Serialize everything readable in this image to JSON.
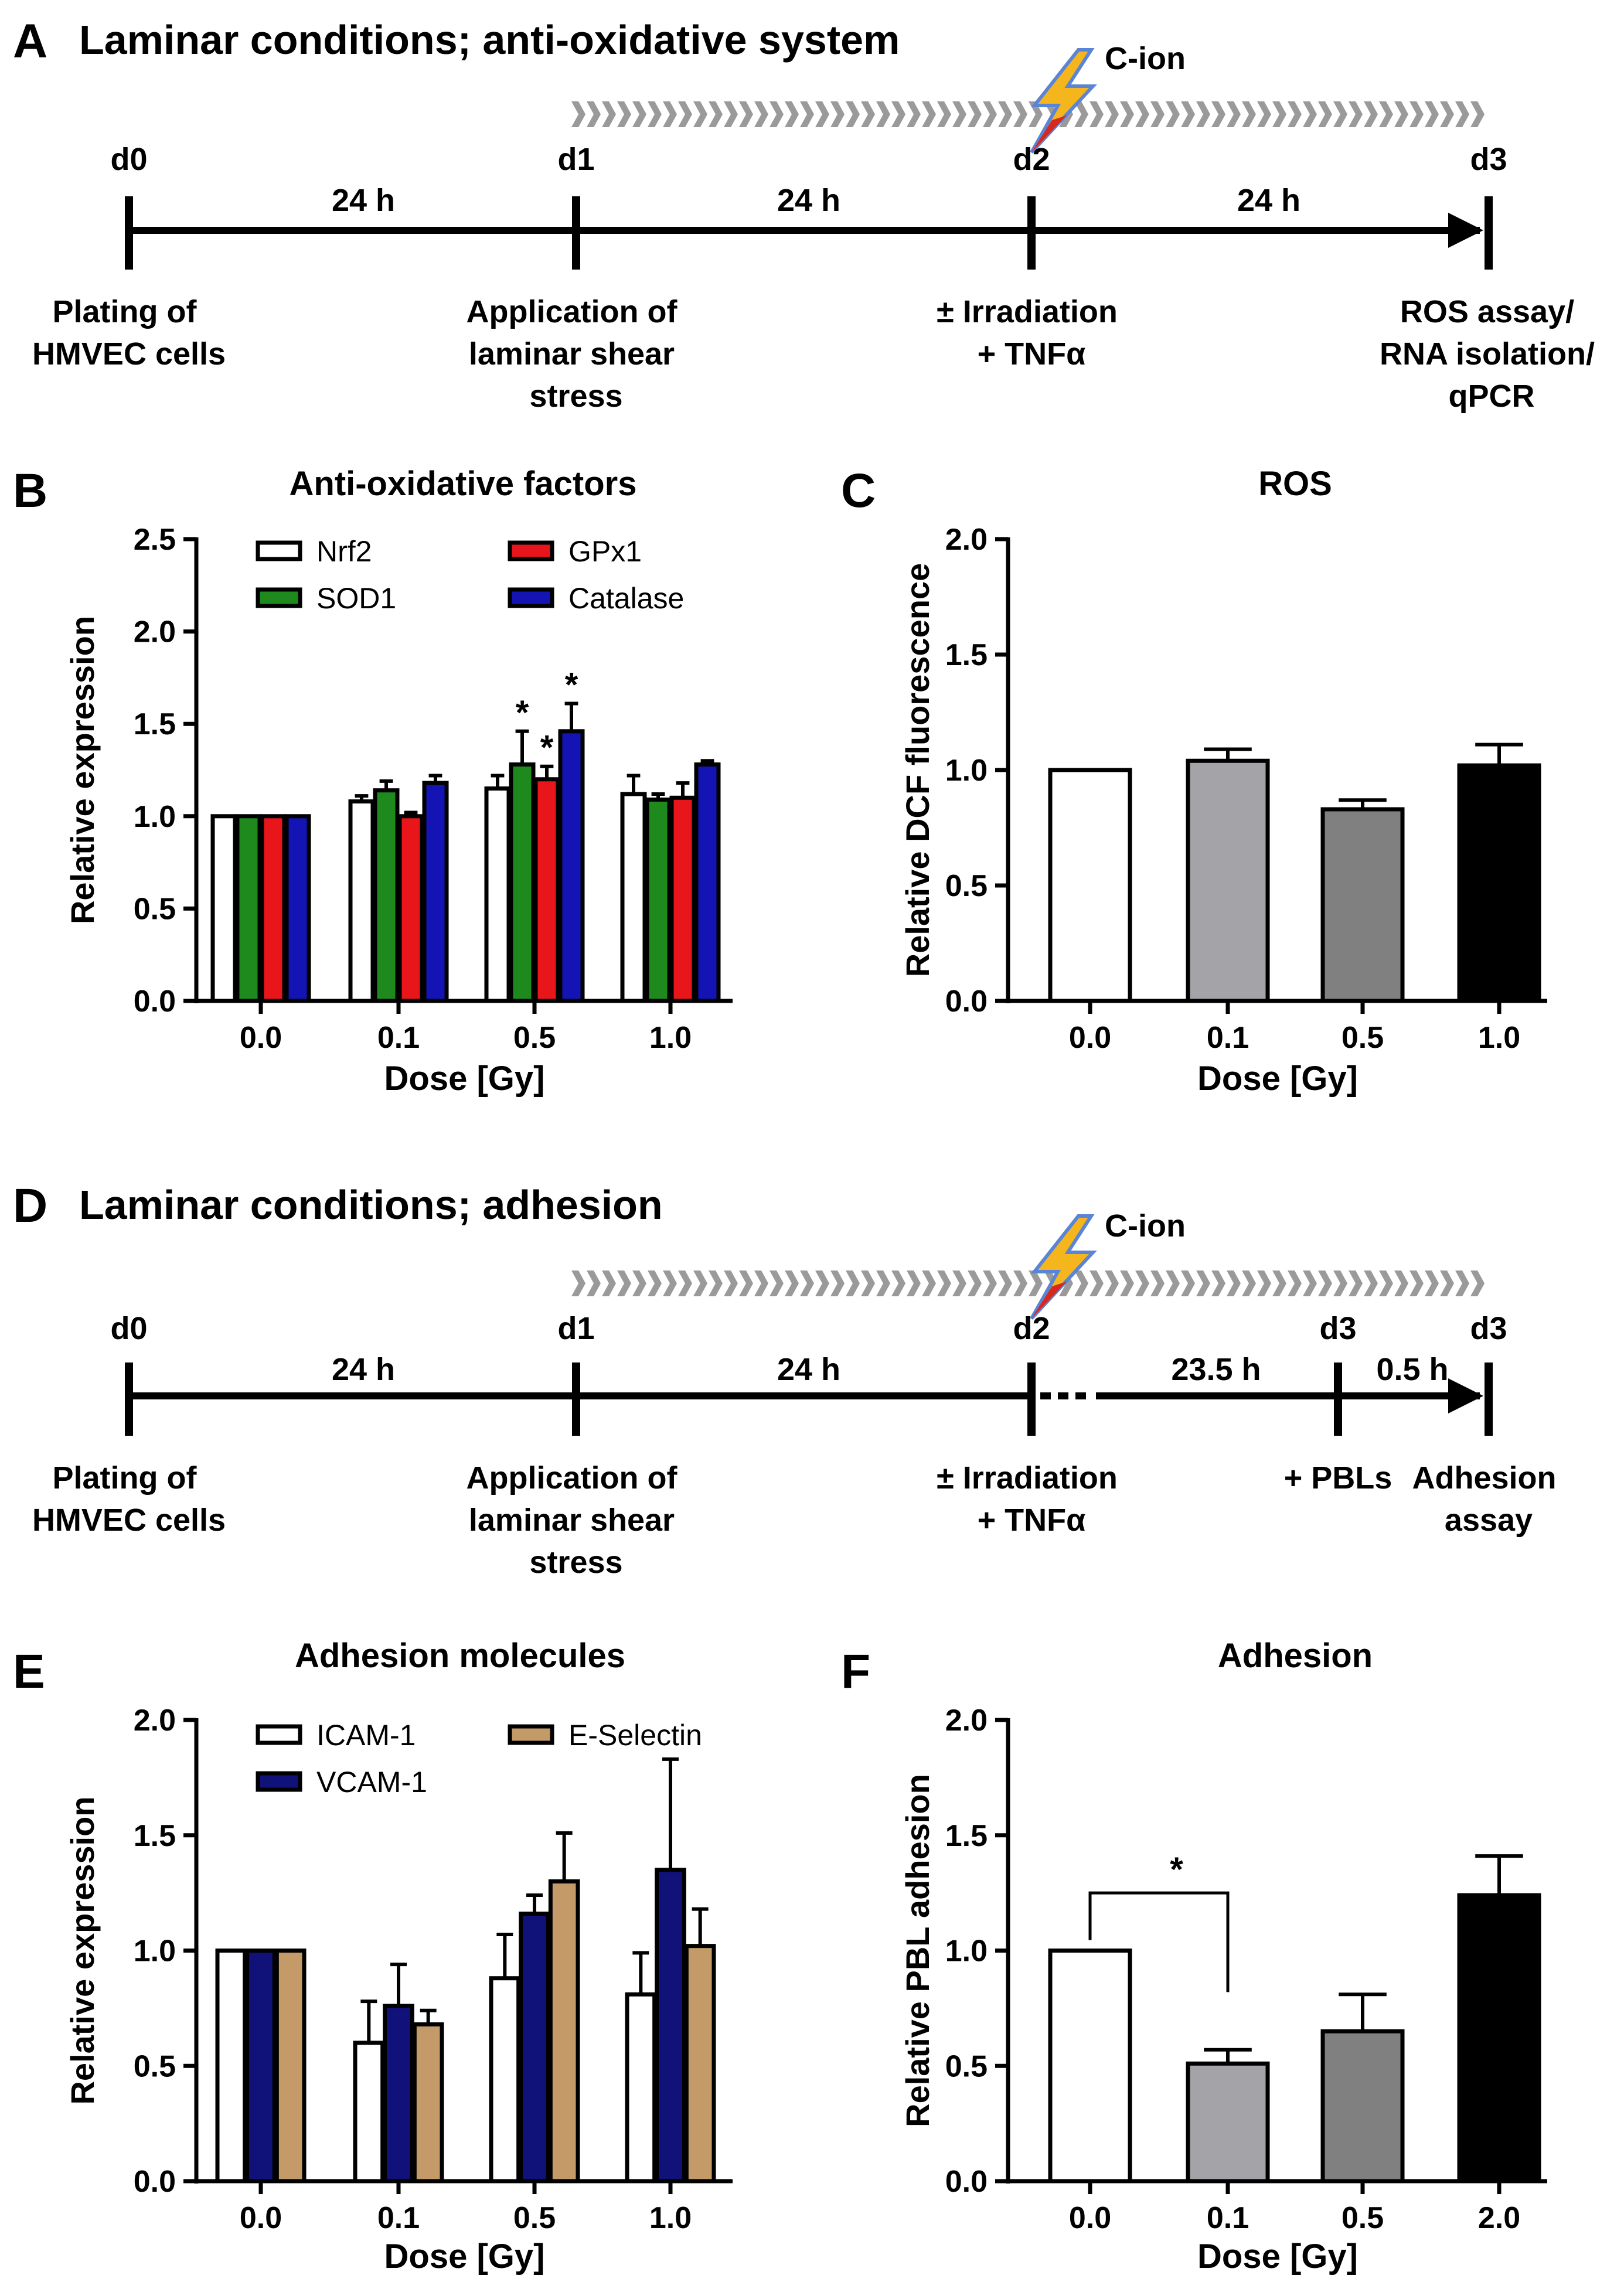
{
  "colors": {
    "white": "#ffffff",
    "green": "#1e8a1e",
    "red": "#e8161b",
    "blue": "#1414b4",
    "navy": "#11117a",
    "tan": "#c49a68",
    "lightgray": "#a4a4a8",
    "darkgray": "#808080",
    "black": "#000000",
    "chevron": "#9a9a9a",
    "bolt_yellow": "#f5b51d",
    "bolt_red": "#d8281c"
  },
  "panels": {
    "A": {
      "letter": "A",
      "title": "Laminar conditions; anti-oxidative system",
      "beam_label": "C-ion",
      "days": [
        "d0",
        "d1",
        "d2",
        "d3"
      ],
      "intervals": [
        "24 h",
        "24 h",
        "24 h"
      ],
      "events": [
        [
          "Plating of",
          "HMVEC cells"
        ],
        [
          "Application of",
          "laminar shear",
          "stress"
        ],
        [
          "± Irradiation",
          "+ TNFα"
        ],
        [
          "ROS assay/",
          "RNA isolation/",
          "qPCR"
        ]
      ]
    },
    "D": {
      "letter": "D",
      "title": "Laminar conditions; adhesion",
      "beam_label": "C-ion",
      "days": [
        "d0",
        "d1",
        "d2",
        "d3",
        "d3"
      ],
      "intervals": [
        "24 h",
        "24 h",
        "23.5 h",
        "0.5 h"
      ],
      "events": [
        [
          "Plating of",
          "HMVEC cells"
        ],
        [
          "Application of",
          "laminar shear",
          "stress"
        ],
        [
          "± Irradiation",
          "+ TNFα"
        ],
        [
          "+ PBLs"
        ],
        [
          "Adhesion",
          "assay"
        ]
      ]
    }
  },
  "chart_data": [
    {
      "id": "B",
      "letter": "B",
      "type": "bar",
      "title": "Anti-oxidative factors",
      "xlabel": "Dose [Gy]",
      "ylabel": "Relative expression",
      "categories": [
        "0.0",
        "0.1",
        "0.5",
        "1.0"
      ],
      "ylim": [
        0,
        2.5
      ],
      "yticks": [
        "0.0",
        "0.5",
        "1.0",
        "1.5",
        "2.0",
        "2.5"
      ],
      "legend": "top",
      "series": [
        {
          "name": "Nrf2",
          "color": "white",
          "values": [
            1.0,
            1.08,
            1.15,
            1.12
          ],
          "errors": [
            0,
            0.03,
            0.07,
            0.1
          ],
          "sig": [
            "",
            "",
            "",
            ""
          ]
        },
        {
          "name": "SOD1",
          "color": "green",
          "values": [
            1.0,
            1.14,
            1.28,
            1.09
          ],
          "errors": [
            0,
            0.05,
            0.18,
            0.03
          ],
          "sig": [
            "",
            "",
            "*",
            ""
          ]
        },
        {
          "name": "GPx1",
          "color": "red",
          "values": [
            1.0,
            1.0,
            1.2,
            1.1
          ],
          "errors": [
            0,
            0.02,
            0.07,
            0.08
          ],
          "sig": [
            "",
            "",
            "*",
            ""
          ]
        },
        {
          "name": "Catalase",
          "color": "blue",
          "values": [
            1.0,
            1.18,
            1.46,
            1.28
          ],
          "errors": [
            0,
            0.04,
            0.15,
            0.02
          ],
          "sig": [
            "",
            "",
            "*",
            ""
          ]
        }
      ]
    },
    {
      "id": "C",
      "letter": "C",
      "type": "bar",
      "title": "ROS",
      "xlabel": "Dose [Gy]",
      "ylabel": "Relative DCF fluorescence",
      "categories": [
        "0.0",
        "0.1",
        "0.5",
        "1.0"
      ],
      "ylim": [
        0,
        2.0
      ],
      "yticks": [
        "0.0",
        "0.5",
        "1.0",
        "1.5",
        "2.0"
      ],
      "series": [
        {
          "name": "ROS",
          "colors": [
            "white",
            "lightgray",
            "darkgray",
            "black"
          ],
          "values": [
            1.0,
            1.04,
            0.83,
            1.02
          ],
          "errors": [
            0,
            0.05,
            0.04,
            0.09
          ]
        }
      ]
    },
    {
      "id": "E",
      "letter": "E",
      "type": "bar",
      "title": "Adhesion molecules",
      "xlabel": "Dose [Gy]",
      "ylabel": "Relative expression",
      "categories": [
        "0.0",
        "0.1",
        "0.5",
        "1.0"
      ],
      "ylim": [
        0,
        2.0
      ],
      "yticks": [
        "0.0",
        "0.5",
        "1.0",
        "1.5",
        "2.0"
      ],
      "legend": "top",
      "series": [
        {
          "name": "ICAM-1",
          "color": "white",
          "values": [
            1.0,
            0.6,
            0.88,
            0.81
          ],
          "errors": [
            0,
            0.18,
            0.19,
            0.18
          ],
          "sig": [
            "",
            "",
            "",
            ""
          ]
        },
        {
          "name": "VCAM-1",
          "color": "navy",
          "values": [
            1.0,
            0.76,
            1.16,
            1.35
          ],
          "errors": [
            0,
            0.18,
            0.08,
            0.48
          ],
          "sig": [
            "",
            "",
            "",
            ""
          ]
        },
        {
          "name": "E-Selectin",
          "color": "tan",
          "values": [
            1.0,
            0.68,
            1.3,
            1.02
          ],
          "errors": [
            0,
            0.06,
            0.21,
            0.16
          ],
          "sig": [
            "",
            "",
            "",
            ""
          ]
        }
      ]
    },
    {
      "id": "F",
      "letter": "F",
      "type": "bar",
      "title": "Adhesion",
      "xlabel": "Dose [Gy]",
      "ylabel": "Relative PBL adhesion",
      "categories": [
        "0.0",
        "0.1",
        "0.5",
        "2.0"
      ],
      "ylim": [
        0,
        2.0
      ],
      "yticks": [
        "0.0",
        "0.5",
        "1.0",
        "1.5",
        "2.0"
      ],
      "significance": {
        "from": 0,
        "to": 1,
        "label": "*"
      },
      "series": [
        {
          "name": "PBL adhesion",
          "colors": [
            "white",
            "lightgray",
            "darkgray",
            "black"
          ],
          "values": [
            1.0,
            0.51,
            0.65,
            1.24
          ],
          "errors": [
            0,
            0.06,
            0.16,
            0.17
          ]
        }
      ]
    }
  ]
}
